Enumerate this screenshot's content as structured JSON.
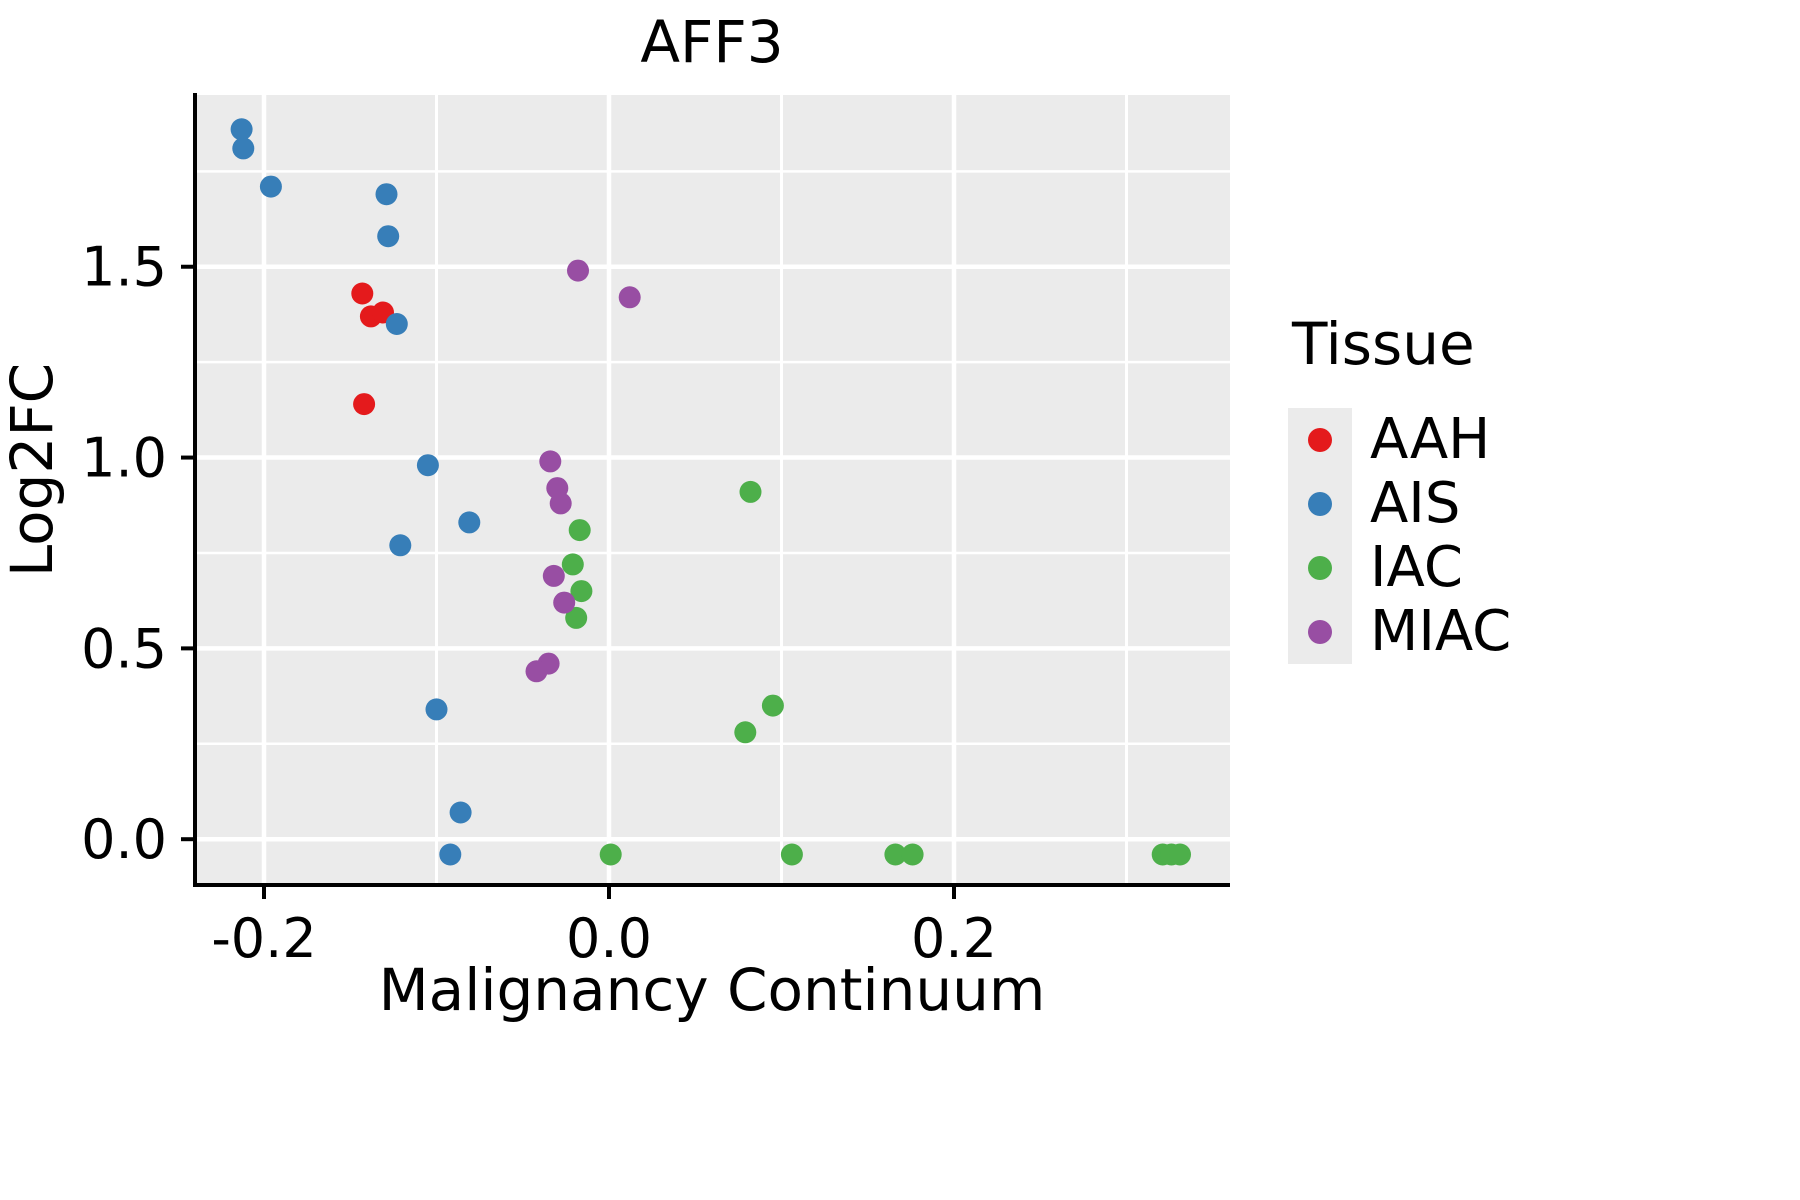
{
  "chart_data": {
    "type": "scatter",
    "title": "AFF3",
    "xlabel": "Malignancy Continuum",
    "ylabel": "Log2FC",
    "legend_title": "Tissue",
    "legend_position": "right",
    "grid": true,
    "panel_bg": "#ebebeb",
    "grid_color": "#ffffff",
    "axis_color": "#000000",
    "xlim": [
      -0.24,
      0.36
    ],
    "ylim": [
      -0.12,
      1.95
    ],
    "x_ticks": [
      -0.2,
      0.0,
      0.2
    ],
    "x_tick_labels": [
      "-0.2",
      "0.0",
      "0.2"
    ],
    "x_minor_gridlines": [
      -0.1,
      0.1,
      0.3
    ],
    "y_ticks": [
      0.0,
      0.5,
      1.0,
      1.5
    ],
    "y_tick_labels": [
      "0.0",
      "0.5",
      "1.0",
      "1.5"
    ],
    "y_minor_gridlines": [
      0.25,
      0.75,
      1.25,
      1.75
    ],
    "point_radius": 11,
    "series": [
      {
        "name": "AAH",
        "color": "#e41a1c",
        "points": [
          [
            -0.143,
            1.43
          ],
          [
            -0.138,
            1.37
          ],
          [
            -0.131,
            1.38
          ],
          [
            -0.142,
            1.14
          ]
        ]
      },
      {
        "name": "AIS",
        "color": "#377eb8",
        "points": [
          [
            -0.213,
            1.86
          ],
          [
            -0.212,
            1.81
          ],
          [
            -0.196,
            1.71
          ],
          [
            -0.129,
            1.69
          ],
          [
            -0.128,
            1.58
          ],
          [
            -0.123,
            1.35
          ],
          [
            -0.105,
            0.98
          ],
          [
            -0.081,
            0.83
          ],
          [
            -0.121,
            0.77
          ],
          [
            -0.1,
            0.34
          ],
          [
            -0.086,
            0.07
          ],
          [
            -0.092,
            -0.04
          ]
        ]
      },
      {
        "name": "IAC",
        "color": "#4daf4a",
        "points": [
          [
            0.082,
            0.91
          ],
          [
            -0.017,
            0.81
          ],
          [
            -0.021,
            0.72
          ],
          [
            -0.016,
            0.65
          ],
          [
            -0.019,
            0.58
          ],
          [
            0.095,
            0.35
          ],
          [
            0.079,
            0.28
          ],
          [
            0.001,
            -0.04
          ],
          [
            0.106,
            -0.04
          ],
          [
            0.166,
            -0.04
          ],
          [
            0.176,
            -0.04
          ],
          [
            0.321,
            -0.04
          ],
          [
            0.326,
            -0.04
          ],
          [
            0.331,
            -0.04
          ]
        ]
      },
      {
        "name": "MIAC",
        "color": "#984ea3",
        "points": [
          [
            -0.018,
            1.49
          ],
          [
            0.012,
            1.42
          ],
          [
            -0.034,
            0.99
          ],
          [
            -0.03,
            0.92
          ],
          [
            -0.028,
            0.88
          ],
          [
            -0.032,
            0.69
          ],
          [
            -0.026,
            0.62
          ],
          [
            -0.035,
            0.46
          ],
          [
            -0.042,
            0.44
          ]
        ]
      }
    ]
  }
}
